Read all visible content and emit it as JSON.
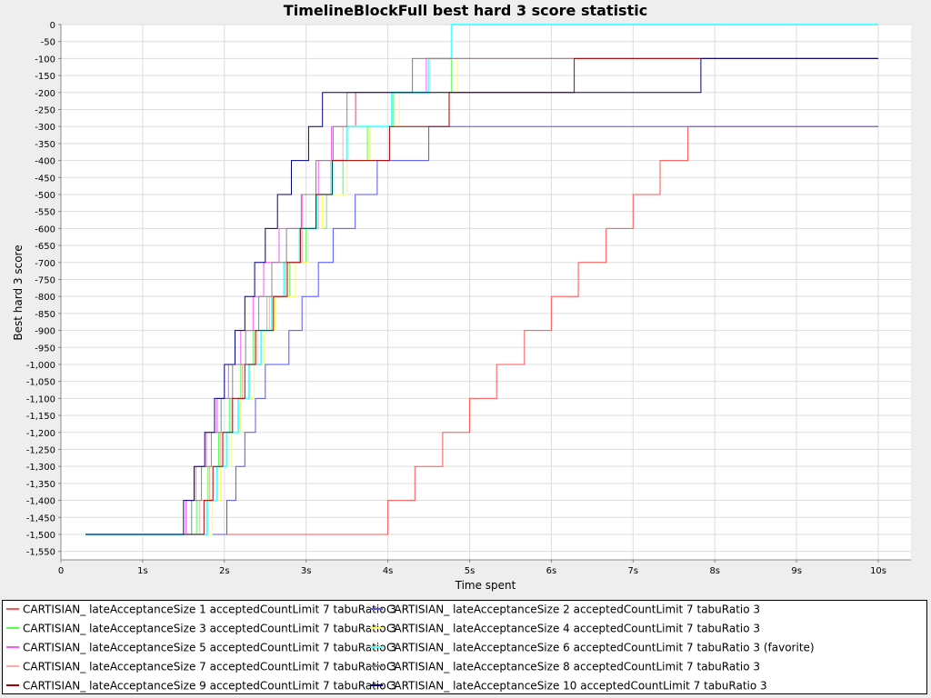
{
  "chart_data": {
    "type": "line",
    "title": "TimelineBlockFull best hard 3 score statistic",
    "xlabel": "Time spent",
    "ylabel": "Best hard 3 score",
    "xlim": [
      0,
      10.4
    ],
    "ylim": [
      -1575,
      0
    ],
    "xticks": [
      0,
      1,
      2,
      3,
      4,
      5,
      6,
      7,
      8,
      9,
      10
    ],
    "xtick_labels": [
      "0",
      "1s",
      "2s",
      "3s",
      "4s",
      "5s",
      "6s",
      "7s",
      "8s",
      "9s",
      "10s"
    ],
    "yticks": [
      0,
      -50,
      -100,
      -150,
      -200,
      -250,
      -300,
      -350,
      -400,
      -450,
      -500,
      -550,
      -600,
      -650,
      -700,
      -750,
      -800,
      -850,
      -900,
      -950,
      -1000,
      -1050,
      -1100,
      -1150,
      -1200,
      -1250,
      -1300,
      -1350,
      -1400,
      -1450,
      -1500,
      -1550
    ],
    "ytick_labels": [
      "0",
      "-50",
      "-100",
      "-150",
      "-200",
      "-250",
      "-300",
      "-350",
      "-400",
      "-450",
      "-500",
      "-550",
      "-600",
      "-650",
      "-700",
      "-750",
      "-800",
      "-850",
      "-900",
      "-950",
      "-1,000",
      "-1,050",
      "-1,100",
      "-1,150",
      "-1,200",
      "-1,250",
      "-1,300",
      "-1,350",
      "-1,400",
      "-1,450",
      "-1,500",
      "-1,550"
    ],
    "grid": true,
    "legend_position": "bottom",
    "series": [
      {
        "name": "CARTISIAN_ lateAcceptanceSize 1 acceptedCountLimit 7 tabuRatio 3",
        "color": "#ff5555",
        "x": [
          0.3,
          4.0,
          4.33,
          4.67,
          5.0,
          5.33,
          5.67,
          6.0,
          6.33,
          6.67,
          7.0,
          7.33,
          7.67,
          10.0
        ],
        "y": [
          -1500,
          -1400,
          -1300,
          -1200,
          -1100,
          -1000,
          -900,
          -800,
          -700,
          -600,
          -500,
          -400,
          -300,
          -300
        ]
      },
      {
        "name": "CARTISIAN_ lateAcceptanceSize 2 acceptedCountLimit 7 tabuRatio 3",
        "color": "#5555ff",
        "x": [
          0.3,
          2.03,
          2.14,
          2.25,
          2.38,
          2.5,
          2.79,
          2.95,
          3.15,
          3.33,
          3.6,
          3.87,
          4.5,
          4.82,
          5.1,
          10.0
        ],
        "y": [
          -1500,
          -1400,
          -1300,
          -1200,
          -1100,
          -1000,
          -900,
          -800,
          -700,
          -600,
          -500,
          -400,
          -300,
          -300,
          -300,
          -300
        ]
      },
      {
        "name": "CARTISIAN_ lateAcceptanceSize 3 acceptedCountLimit 7 tabuRatio 3",
        "color": "#55ff55",
        "x": [
          0.3,
          1.66,
          1.8,
          1.93,
          2.06,
          2.2,
          2.35,
          2.52,
          2.8,
          3.0,
          3.25,
          3.45,
          3.75,
          4.07,
          4.78,
          10.0
        ],
        "y": [
          -1500,
          -1400,
          -1300,
          -1200,
          -1100,
          -1000,
          -900,
          -800,
          -700,
          -600,
          -500,
          -400,
          -300,
          -200,
          -100,
          -100
        ]
      },
      {
        "name": "CARTISIAN_ lateAcceptanceSize 4 acceptedCountLimit 7 tabuRatio 3",
        "color": "#ffff55",
        "x": [
          0.3,
          1.85,
          1.95,
          2.08,
          2.2,
          2.36,
          2.48,
          2.62,
          2.87,
          3.03,
          3.2,
          3.5,
          3.78,
          4.14,
          4.85,
          10.0
        ],
        "y": [
          -1500,
          -1400,
          -1300,
          -1200,
          -1100,
          -1000,
          -900,
          -800,
          -700,
          -600,
          -500,
          -400,
          -300,
          -200,
          -100,
          -100
        ]
      },
      {
        "name": "CARTISIAN_ lateAcceptanceSize 5 acceptedCountLimit 7 tabuRatio 3",
        "color": "#ff55ff",
        "x": [
          0.3,
          1.53,
          1.65,
          1.78,
          1.91,
          2.05,
          2.2,
          2.35,
          2.48,
          2.67,
          2.95,
          3.15,
          3.31,
          3.61,
          4.47,
          5.85,
          10.0
        ],
        "y": [
          -1500,
          -1400,
          -1300,
          -1200,
          -1100,
          -1000,
          -900,
          -800,
          -700,
          -600,
          -500,
          -400,
          -300,
          -200,
          -100,
          -100,
          -100
        ]
      },
      {
        "name": "CARTISIAN_ lateAcceptanceSize 6 acceptedCountLimit 7 tabuRatio 3 (favorite)",
        "color": "#55ffff",
        "x": [
          0.3,
          1.79,
          1.91,
          2.03,
          2.17,
          2.3,
          2.45,
          2.58,
          2.73,
          2.92,
          3.13,
          3.32,
          3.5,
          4.05,
          4.5,
          4.78,
          7.05,
          10.0
        ],
        "y": [
          -1500,
          -1400,
          -1300,
          -1200,
          -1100,
          -1000,
          -900,
          -800,
          -700,
          -600,
          -500,
          -400,
          -300,
          -200,
          -100,
          0,
          0,
          0
        ]
      },
      {
        "name": "CARTISIAN_ lateAcceptanceSize 7 acceptedCountLimit 7 tabuRatio 3",
        "color": "#ffaaaa",
        "x": [
          0.3,
          1.7,
          1.82,
          1.95,
          2.08,
          2.22,
          2.4,
          2.55,
          2.75,
          2.95,
          3.15,
          3.3,
          3.45,
          3.6,
          4.3,
          5.8,
          8.05,
          10.0
        ],
        "y": [
          -1500,
          -1400,
          -1300,
          -1200,
          -1100,
          -1000,
          -900,
          -800,
          -700,
          -600,
          -500,
          -400,
          -300,
          -200,
          -100,
          -100,
          -100,
          -100
        ]
      },
      {
        "name": "CARTISIAN_ lateAcceptanceSize 8 acceptedCountLimit 7 tabuRatio 3",
        "color": "#888888",
        "x": [
          0.3,
          1.6,
          1.72,
          1.84,
          1.96,
          2.1,
          2.26,
          2.42,
          2.58,
          2.76,
          2.94,
          3.12,
          3.33,
          3.5,
          4.3,
          6.15,
          10.0
        ],
        "y": [
          -1500,
          -1400,
          -1300,
          -1200,
          -1100,
          -1000,
          -900,
          -800,
          -700,
          -600,
          -500,
          -400,
          -300,
          -200,
          -100,
          -100,
          -100
        ]
      },
      {
        "name": "CARTISIAN_ lateAcceptanceSize 9 acceptedCountLimit 7 tabuRatio 3",
        "color": "#aa0000",
        "x": [
          0.3,
          1.75,
          1.86,
          1.98,
          2.1,
          2.25,
          2.38,
          2.6,
          2.77,
          2.93,
          3.12,
          3.32,
          4.02,
          4.75,
          6.28,
          8.1,
          8.5,
          10.0
        ],
        "y": [
          -1500,
          -1400,
          -1300,
          -1200,
          -1100,
          -1000,
          -900,
          -800,
          -700,
          -600,
          -500,
          -400,
          -300,
          -200,
          -100,
          -100,
          -100,
          -100
        ]
      },
      {
        "name": "CARTISIAN_ lateAcceptanceSize 10 acceptedCountLimit 7 tabuRatio 3",
        "color": "#000088",
        "x": [
          0.3,
          1.5,
          1.63,
          1.76,
          1.88,
          2.0,
          2.13,
          2.25,
          2.37,
          2.5,
          2.65,
          2.82,
          3.03,
          3.2,
          3.5,
          7.83,
          10.0
        ],
        "y": [
          -1500,
          -1400,
          -1300,
          -1200,
          -1100,
          -1000,
          -900,
          -800,
          -700,
          -600,
          -500,
          -400,
          -300,
          -200,
          -200,
          -100,
          -100
        ]
      }
    ]
  }
}
